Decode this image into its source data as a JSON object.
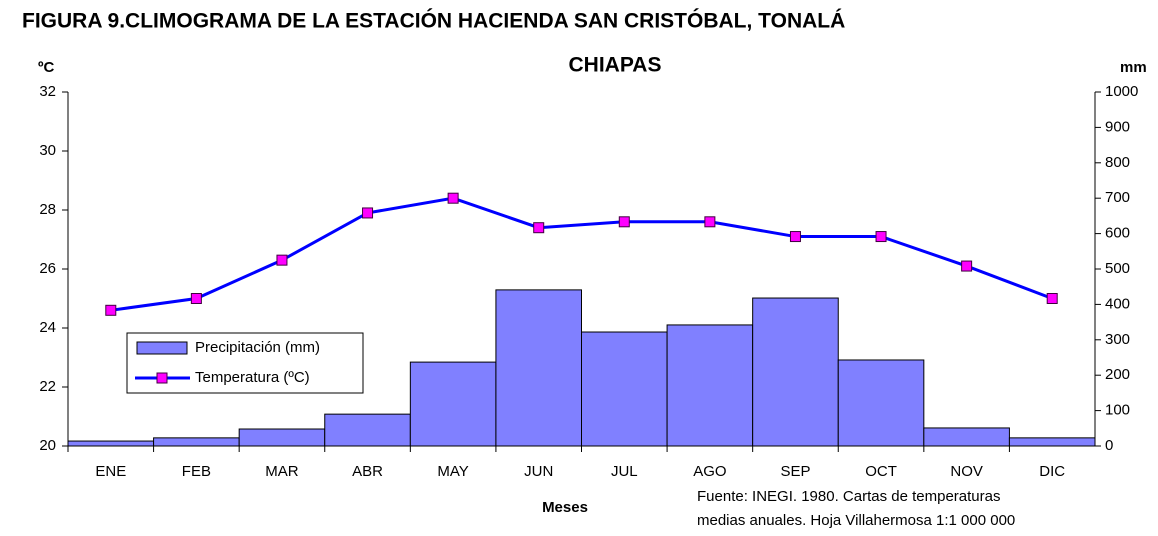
{
  "chart_data": {
    "type": "bar-line",
    "title": [
      "FIGURA 9.CLIMOGRAMA DE LA ESTACIÓN HACIENDA SAN CRISTÓBAL, TONALÁ",
      "CHIAPAS"
    ],
    "ylabel": "ºC",
    "y2label": "mm",
    "xlabel": "Meses",
    "source": [
      "Fuente: INEGI. 1980. Cartas de temperaturas",
      "medias anuales. Hoja Villahermosa 1:1 000 000"
    ],
    "categories": [
      "ENE",
      "FEB",
      "MAR",
      "ABR",
      "MAY",
      "JUN",
      "JUL",
      "AGO",
      "SEP",
      "OCT",
      "NOV",
      "DIC"
    ],
    "series": [
      {
        "name": "Precipitación (mm)",
        "type": "bar",
        "axis": "y2",
        "color": "#8080ff",
        "values": [
          14,
          23,
          48,
          90,
          237,
          441,
          322,
          342,
          418,
          243,
          51,
          23
        ]
      },
      {
        "name": "Temperatura (ºC)",
        "type": "line",
        "color": "#0000ff",
        "marker_color": "#ff00ff",
        "values": [
          24.6,
          25.0,
          26.3,
          27.9,
          28.4,
          27.4,
          27.6,
          27.6,
          27.1,
          27.1,
          26.1,
          25.0
        ]
      }
    ],
    "ylim": [
      20,
      32
    ],
    "yticks": [
      20,
      22,
      24,
      26,
      28,
      30,
      32
    ],
    "y2lim": [
      0,
      1000
    ],
    "y2ticks": [
      0,
      100,
      200,
      300,
      400,
      500,
      600,
      700,
      800,
      900,
      1000
    ],
    "grid": false,
    "legend": "left"
  }
}
